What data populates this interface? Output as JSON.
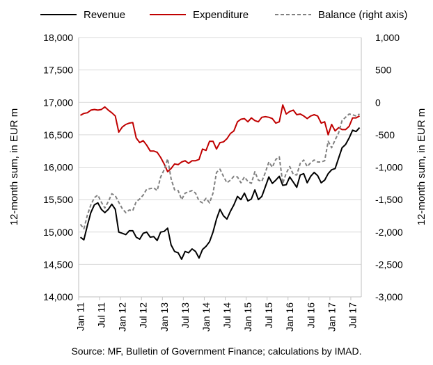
{
  "chart_data": {
    "type": "line",
    "source": "Source: MF, Bulletin of Government Finance; calculations by IMAD.",
    "ylabel": "12-month sum, in EUR m",
    "y2label": "12-month sum, in EUR m",
    "ylim": [
      14000,
      18000
    ],
    "y2lim": [
      -3000,
      1000
    ],
    "yticks": [
      "14,000",
      "14,500",
      "15,000",
      "15,500",
      "16,000",
      "16,500",
      "17,000",
      "17,500",
      "18,000"
    ],
    "y2ticks": [
      "-3,000",
      "-2,500",
      "-2,000",
      "-1,500",
      "-1,000",
      "-500",
      "0",
      "500",
      "1,000"
    ],
    "x_tick_labels": [
      "Jan 11",
      "Jul 11",
      "Jan 12",
      "Jul 12",
      "Jan 13",
      "Jul 13",
      "Jan 14",
      "Jul 14",
      "Jan 15",
      "Jul 15",
      "Jan 16",
      "Jul 16",
      "Jan 17",
      "Jul 17"
    ],
    "x": [
      "Jan 11",
      "Feb 11",
      "Mar 11",
      "Apr 11",
      "May 11",
      "Jun 11",
      "Jul 11",
      "Aug 11",
      "Sep 11",
      "Oct 11",
      "Nov 11",
      "Dec 11",
      "Jan 12",
      "Feb 12",
      "Mar 12",
      "Apr 12",
      "May 12",
      "Jun 12",
      "Jul 12",
      "Aug 12",
      "Sep 12",
      "Oct 12",
      "Nov 12",
      "Dec 12",
      "Jan 13",
      "Feb 13",
      "Mar 13",
      "Apr 13",
      "May 13",
      "Jun 13",
      "Jul 13",
      "Aug 13",
      "Sep 13",
      "Oct 13",
      "Nov 13",
      "Dec 13",
      "Jan 14",
      "Feb 14",
      "Mar 14",
      "Apr 14",
      "May 14",
      "Jun 14",
      "Jul 14",
      "Aug 14",
      "Sep 14",
      "Oct 14",
      "Nov 14",
      "Dec 14",
      "Jan 15",
      "Feb 15",
      "Mar 15",
      "Apr 15",
      "May 15",
      "Jun 15",
      "Jul 15",
      "Aug 15",
      "Sep 15",
      "Oct 15",
      "Nov 15",
      "Dec 15",
      "Jan 16",
      "Feb 16",
      "Mar 16",
      "Apr 16",
      "May 16",
      "Jun 16",
      "Jul 16",
      "Aug 16",
      "Sep 16",
      "Oct 16",
      "Nov 16",
      "Dec 16",
      "Jan 17",
      "Feb 17",
      "Mar 17",
      "Apr 17",
      "May 17",
      "Jun 17",
      "Jul 17",
      "Aug 17",
      "Sep 17"
    ],
    "series": [
      {
        "name": "Revenue",
        "axis": "left",
        "color": "#000000",
        "dash": "solid",
        "values": [
          14920,
          14880,
          15100,
          15300,
          15420,
          15450,
          15350,
          15300,
          15350,
          15430,
          15350,
          15000,
          14980,
          14960,
          15020,
          15020,
          14920,
          14890,
          14980,
          15000,
          14920,
          14930,
          14870,
          15000,
          15010,
          15060,
          14800,
          14700,
          14680,
          14580,
          14700,
          14680,
          14740,
          14700,
          14600,
          14730,
          14780,
          14850,
          15000,
          15200,
          15350,
          15250,
          15200,
          15320,
          15420,
          15550,
          15500,
          15600,
          15480,
          15510,
          15650,
          15500,
          15550,
          15700,
          15850,
          15750,
          15800,
          15860,
          15720,
          15730,
          15850,
          15770,
          15690,
          15880,
          15900,
          15760,
          15860,
          15920,
          15870,
          15760,
          15800,
          15900,
          15960,
          15980,
          16140,
          16300,
          16350,
          16450,
          16570,
          16550,
          16610
        ]
      },
      {
        "name": "Expenditure",
        "axis": "left",
        "color": "#c00000",
        "dash": "solid",
        "values": [
          16800,
          16830,
          16840,
          16880,
          16890,
          16880,
          16890,
          16930,
          16880,
          16840,
          16790,
          16540,
          16620,
          16660,
          16680,
          16690,
          16450,
          16380,
          16410,
          16340,
          16250,
          16250,
          16230,
          16150,
          16050,
          15930,
          15980,
          16050,
          16040,
          16080,
          16100,
          16060,
          16100,
          16100,
          16120,
          16280,
          16260,
          16400,
          16400,
          16280,
          16380,
          16390,
          16440,
          16520,
          16560,
          16700,
          16740,
          16750,
          16700,
          16760,
          16720,
          16700,
          16770,
          16780,
          16770,
          16750,
          16680,
          16700,
          16960,
          16820,
          16860,
          16880,
          16810,
          16820,
          16790,
          16750,
          16790,
          16810,
          16790,
          16680,
          16700,
          16500,
          16660,
          16560,
          16610,
          16580,
          16580,
          16630,
          16760,
          16760,
          16790
        ]
      },
      {
        "name": "Balance (right axis)",
        "axis": "right",
        "color": "#808080",
        "dash": "dashed",
        "values": [
          -1880,
          -1950,
          -1740,
          -1580,
          -1470,
          -1430,
          -1540,
          -1630,
          -1530,
          -1410,
          -1440,
          -1540,
          -1640,
          -1700,
          -1660,
          -1670,
          -1530,
          -1490,
          -1430,
          -1340,
          -1330,
          -1320,
          -1360,
          -1150,
          -1040,
          -870,
          -1180,
          -1350,
          -1360,
          -1500,
          -1400,
          -1380,
          -1360,
          -1400,
          -1520,
          -1550,
          -1480,
          -1550,
          -1400,
          -1080,
          -1030,
          -1140,
          -1240,
          -1200,
          -1140,
          -1150,
          -1240,
          -1150,
          -1220,
          -1250,
          -1070,
          -1200,
          -1220,
          -1080,
          -920,
          -1000,
          -880,
          -840,
          -1250,
          -1090,
          -990,
          -1110,
          -1120,
          -940,
          -890,
          -990,
          -930,
          -890,
          -920,
          -920,
          -900,
          -600,
          -700,
          -580,
          -470,
          -280,
          -230,
          -180,
          -190,
          -210,
          -180
        ]
      }
    ]
  }
}
